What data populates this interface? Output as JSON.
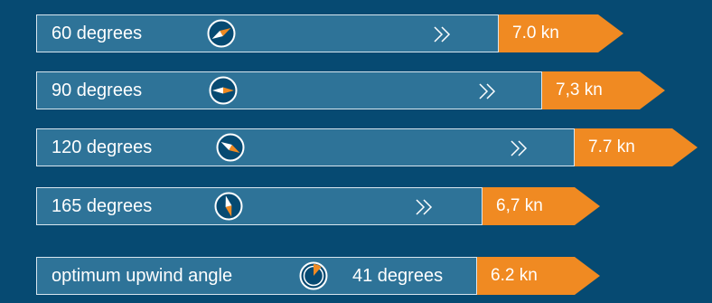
{
  "colors": {
    "background": "#064a72",
    "bar": "#2e7398",
    "bar_border": "#d8e6ef",
    "accent": "#f08a22",
    "text": "#ffffff"
  },
  "rows": [
    {
      "label": "60 degrees",
      "speed": "7.0 kn",
      "icon": "compass-60-icon"
    },
    {
      "label": "90 degrees",
      "speed": "7,3 kn",
      "icon": "compass-90-icon"
    },
    {
      "label": "120 degrees",
      "speed": "7.7 kn",
      "icon": "compass-120-icon"
    },
    {
      "label": "165 degrees",
      "speed": "6,7 kn",
      "icon": "compass-165-icon"
    }
  ],
  "optimum": {
    "label": "optimum upwind angle",
    "angle": "41 degrees",
    "speed": "6.2 kn",
    "icon": "upwind-dial-icon"
  }
}
